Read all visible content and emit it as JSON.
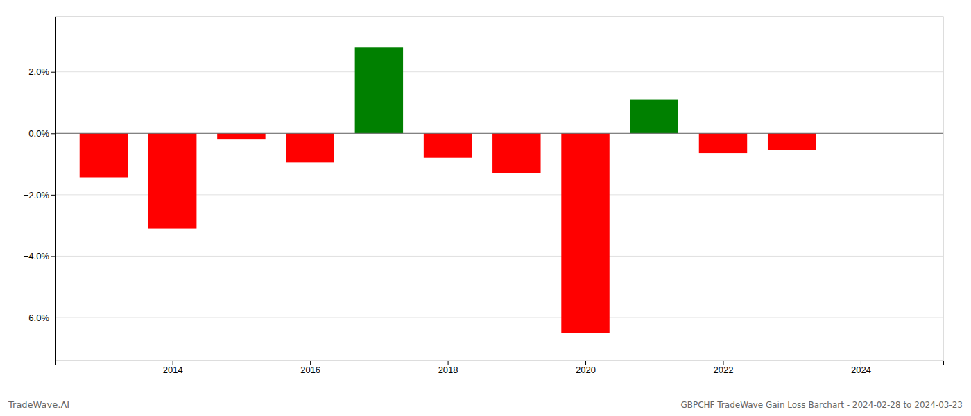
{
  "chart_data": {
    "type": "bar",
    "title": "GBPCHF TradeWave Gain Loss Barchart - 2024-02-28 to 2024-03-23",
    "annotations": [
      "TradeWave.AI"
    ],
    "x": [
      2013,
      2014,
      2015,
      2016,
      2017,
      2018,
      2019,
      2020,
      2021,
      2022,
      2023
    ],
    "values": [
      -0.0145,
      -0.031,
      -0.002,
      -0.0095,
      0.028,
      -0.008,
      -0.013,
      -0.065,
      0.011,
      -0.0065,
      -0.0055
    ],
    "colors": [
      "#ff0000",
      "#ff0000",
      "#ff0000",
      "#ff0000",
      "#008000",
      "#ff0000",
      "#ff0000",
      "#ff0000",
      "#008000",
      "#ff0000",
      "#ff0000"
    ],
    "xlim": [
      2012.3,
      2025.2
    ],
    "xticks": [
      2014,
      2016,
      2018,
      2020,
      2022,
      2024
    ],
    "ylim": [
      -0.074,
      0.038
    ],
    "yticks": [
      {
        "value": -0.06,
        "label": "−6.0%"
      },
      {
        "value": -0.04,
        "label": "−4.0%"
      },
      {
        "value": -0.02,
        "label": "−2.0%"
      },
      {
        "value": 0.0,
        "label": "0.0%"
      },
      {
        "value": 0.02,
        "label": "2.0%"
      }
    ],
    "grid": true
  }
}
